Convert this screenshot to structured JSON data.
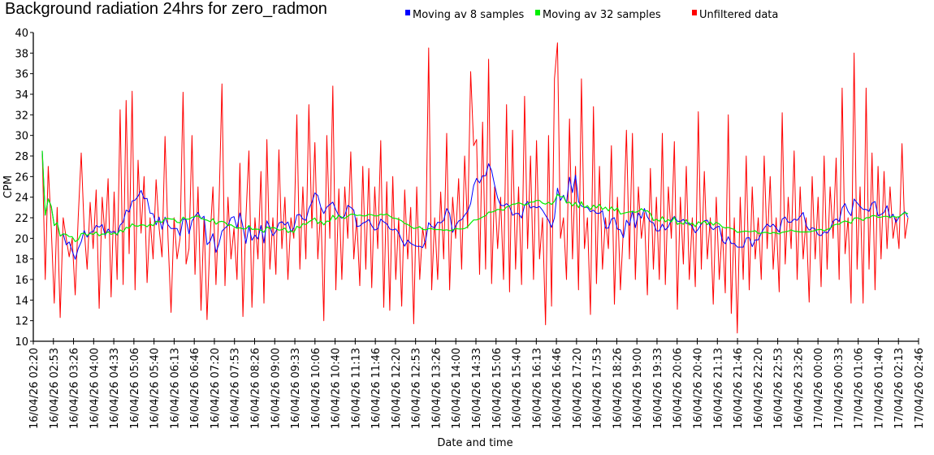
{
  "chart_data": {
    "type": "line",
    "title": "Background radiation 24hrs for zero_radmon",
    "xlabel": "Date and time",
    "ylabel": "CPM",
    "ylim": [
      10,
      40
    ],
    "yticks": [
      "10",
      "12",
      "14",
      "16",
      "18",
      "20",
      "22",
      "24",
      "26",
      "28",
      "30",
      "32",
      "34",
      "36",
      "38",
      "40"
    ],
    "xticks": [
      "16/04/26 02:20",
      "16/04/26 02:53",
      "16/04/26 03:26",
      "16/04/26 04:00",
      "16/04/26 04:33",
      "16/04/26 05:06",
      "16/04/26 05:40",
      "16/04/26 06:13",
      "16/04/26 06:46",
      "16/04/26 07:20",
      "16/04/26 07:53",
      "16/04/26 08:26",
      "16/04/26 09:00",
      "16/04/26 09:33",
      "16/04/26 10:06",
      "16/04/26 10:40",
      "16/04/26 11:13",
      "16/04/26 11:46",
      "16/04/26 12:20",
      "16/04/26 12:53",
      "16/04/26 13:26",
      "16/04/26 14:00",
      "16/04/26 14:33",
      "16/04/26 15:06",
      "16/04/26 15:40",
      "16/04/26 16:13",
      "16/04/26 16:46",
      "16/04/26 17:20",
      "16/04/26 17:53",
      "16/04/26 18:26",
      "16/04/26 19:00",
      "16/04/26 19:33",
      "16/04/26 20:06",
      "16/04/26 20:40",
      "16/04/26 21:13",
      "16/04/26 21:46",
      "16/04/26 22:20",
      "16/04/26 22:53",
      "16/04/26 23:26",
      "17/04/26 00:00",
      "17/04/26 00:33",
      "17/04/26 01:06",
      "17/04/26 01:40",
      "17/04/26 02:13",
      "17/04/26 02:46"
    ],
    "legend_position": "top",
    "grid": false,
    "series": [
      {
        "name": "Moving av 8 samples",
        "color": "#0000ff",
        "window": 8
      },
      {
        "name": "Moving av 32 samples",
        "color": "#00ee00",
        "window": 32
      },
      {
        "name": "Unfiltered data",
        "color": "#ff0000",
        "values": [
          28.5,
          16,
          27,
          21,
          13.7,
          23,
          12.3,
          22,
          20,
          18.2,
          20,
          14.5,
          22,
          28.3,
          21,
          17,
          23.5,
          19,
          24.7,
          13.2,
          24,
          20,
          25.8,
          14.3,
          24.5,
          16,
          32.5,
          15.5,
          33.4,
          18.5,
          34.3,
          15,
          27.6,
          20.5,
          26,
          15.7,
          22,
          18,
          25.7,
          21,
          18.2,
          29.9,
          20,
          12.8,
          22,
          18,
          20,
          34.2,
          17.5,
          19,
          30,
          16.5,
          25,
          13,
          22,
          12.1,
          20,
          25,
          15.5,
          23,
          35,
          15.4,
          24,
          18,
          21,
          16,
          27.3,
          12.4,
          22,
          28.5,
          13.3,
          22,
          18,
          26.5,
          13.7,
          29.6,
          17,
          22,
          16.5,
          28.6,
          19,
          24,
          16,
          22,
          20,
          32,
          17,
          25,
          18,
          33,
          21,
          29.3,
          18,
          23,
          12,
          30,
          20,
          34.8,
          15,
          24.8,
          16,
          25,
          20,
          28.4,
          18,
          22,
          15.4,
          27,
          17,
          26.8,
          15.2,
          25,
          19,
          29.5,
          13.3,
          25.5,
          13,
          26,
          16,
          22,
          13.4,
          24.7,
          18,
          23,
          11.7,
          25,
          16,
          21,
          19,
          38.5,
          15,
          22,
          16,
          24.5,
          18,
          30.2,
          15,
          24,
          20,
          25.8,
          17,
          28,
          21,
          36.2,
          29,
          29.6,
          16.5,
          31.3,
          17,
          37.4,
          15.6,
          25,
          19,
          24,
          16,
          33,
          14.8,
          30.5,
          17,
          25,
          15.5,
          33.8,
          19,
          28,
          16,
          29.5,
          18,
          22,
          11.6,
          30,
          13.4,
          35.5,
          39,
          20,
          22,
          16,
          31.6,
          18,
          27,
          15,
          35.5,
          19,
          22,
          12.6,
          32.8,
          15.6,
          27,
          17,
          22,
          19,
          29,
          13.6,
          24,
          15,
          21,
          30.5,
          18,
          30.2,
          16,
          25,
          20,
          22.5,
          14.5,
          26.8,
          17,
          24,
          16,
          30.2,
          15.5,
          25,
          20,
          29.4,
          13.1,
          24,
          17.5,
          27,
          16,
          22,
          15.3,
          32.3,
          17,
          26.5,
          18,
          22,
          13.6,
          24,
          16,
          21,
          14.7,
          32,
          12.7,
          22,
          10.8,
          24,
          16,
          28,
          15,
          25,
          18,
          22,
          16,
          28,
          19,
          26,
          17,
          22,
          14.8,
          32.2,
          17.5,
          24,
          19,
          28.5,
          16,
          25,
          18,
          22,
          13.8,
          26,
          18,
          24,
          15.3,
          28,
          17,
          25,
          20,
          27.8,
          16,
          34.6,
          18.5,
          22,
          13.7,
          38,
          17,
          25,
          13.7,
          34.6,
          17,
          28.3,
          15,
          27,
          18,
          26.5,
          19,
          25,
          20,
          22,
          19,
          29.2,
          20,
          22
        ]
      }
    ]
  }
}
